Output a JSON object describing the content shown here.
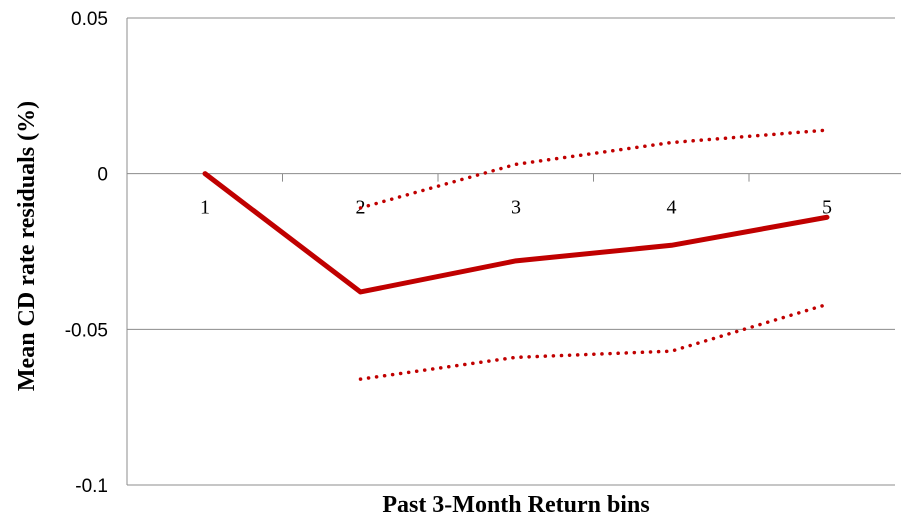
{
  "chart_data": {
    "type": "line",
    "title": "",
    "xlabel": "Past 3-Month Return bins",
    "ylabel": "Mean CD rate residuals (%)",
    "categories": [
      "1",
      "2",
      "3",
      "4",
      "5"
    ],
    "y_ticks": [
      "0.05",
      "0",
      "-0.05",
      "-0.1"
    ],
    "ylim": [
      -0.1,
      0.05
    ],
    "grid": "horizontal",
    "legend": "none",
    "series": [
      {
        "style": "solid",
        "color": "#c00000",
        "values": [
          0,
          -0.038,
          -0.028,
          -0.023,
          -0.014
        ]
      },
      {
        "style": "dotted",
        "color": "#c00000",
        "values": [
          null,
          -0.011,
          0.003,
          0.01,
          0.014
        ]
      },
      {
        "style": "dotted",
        "color": "#c00000",
        "values": [
          null,
          -0.066,
          -0.059,
          -0.057,
          -0.042
        ]
      }
    ]
  }
}
